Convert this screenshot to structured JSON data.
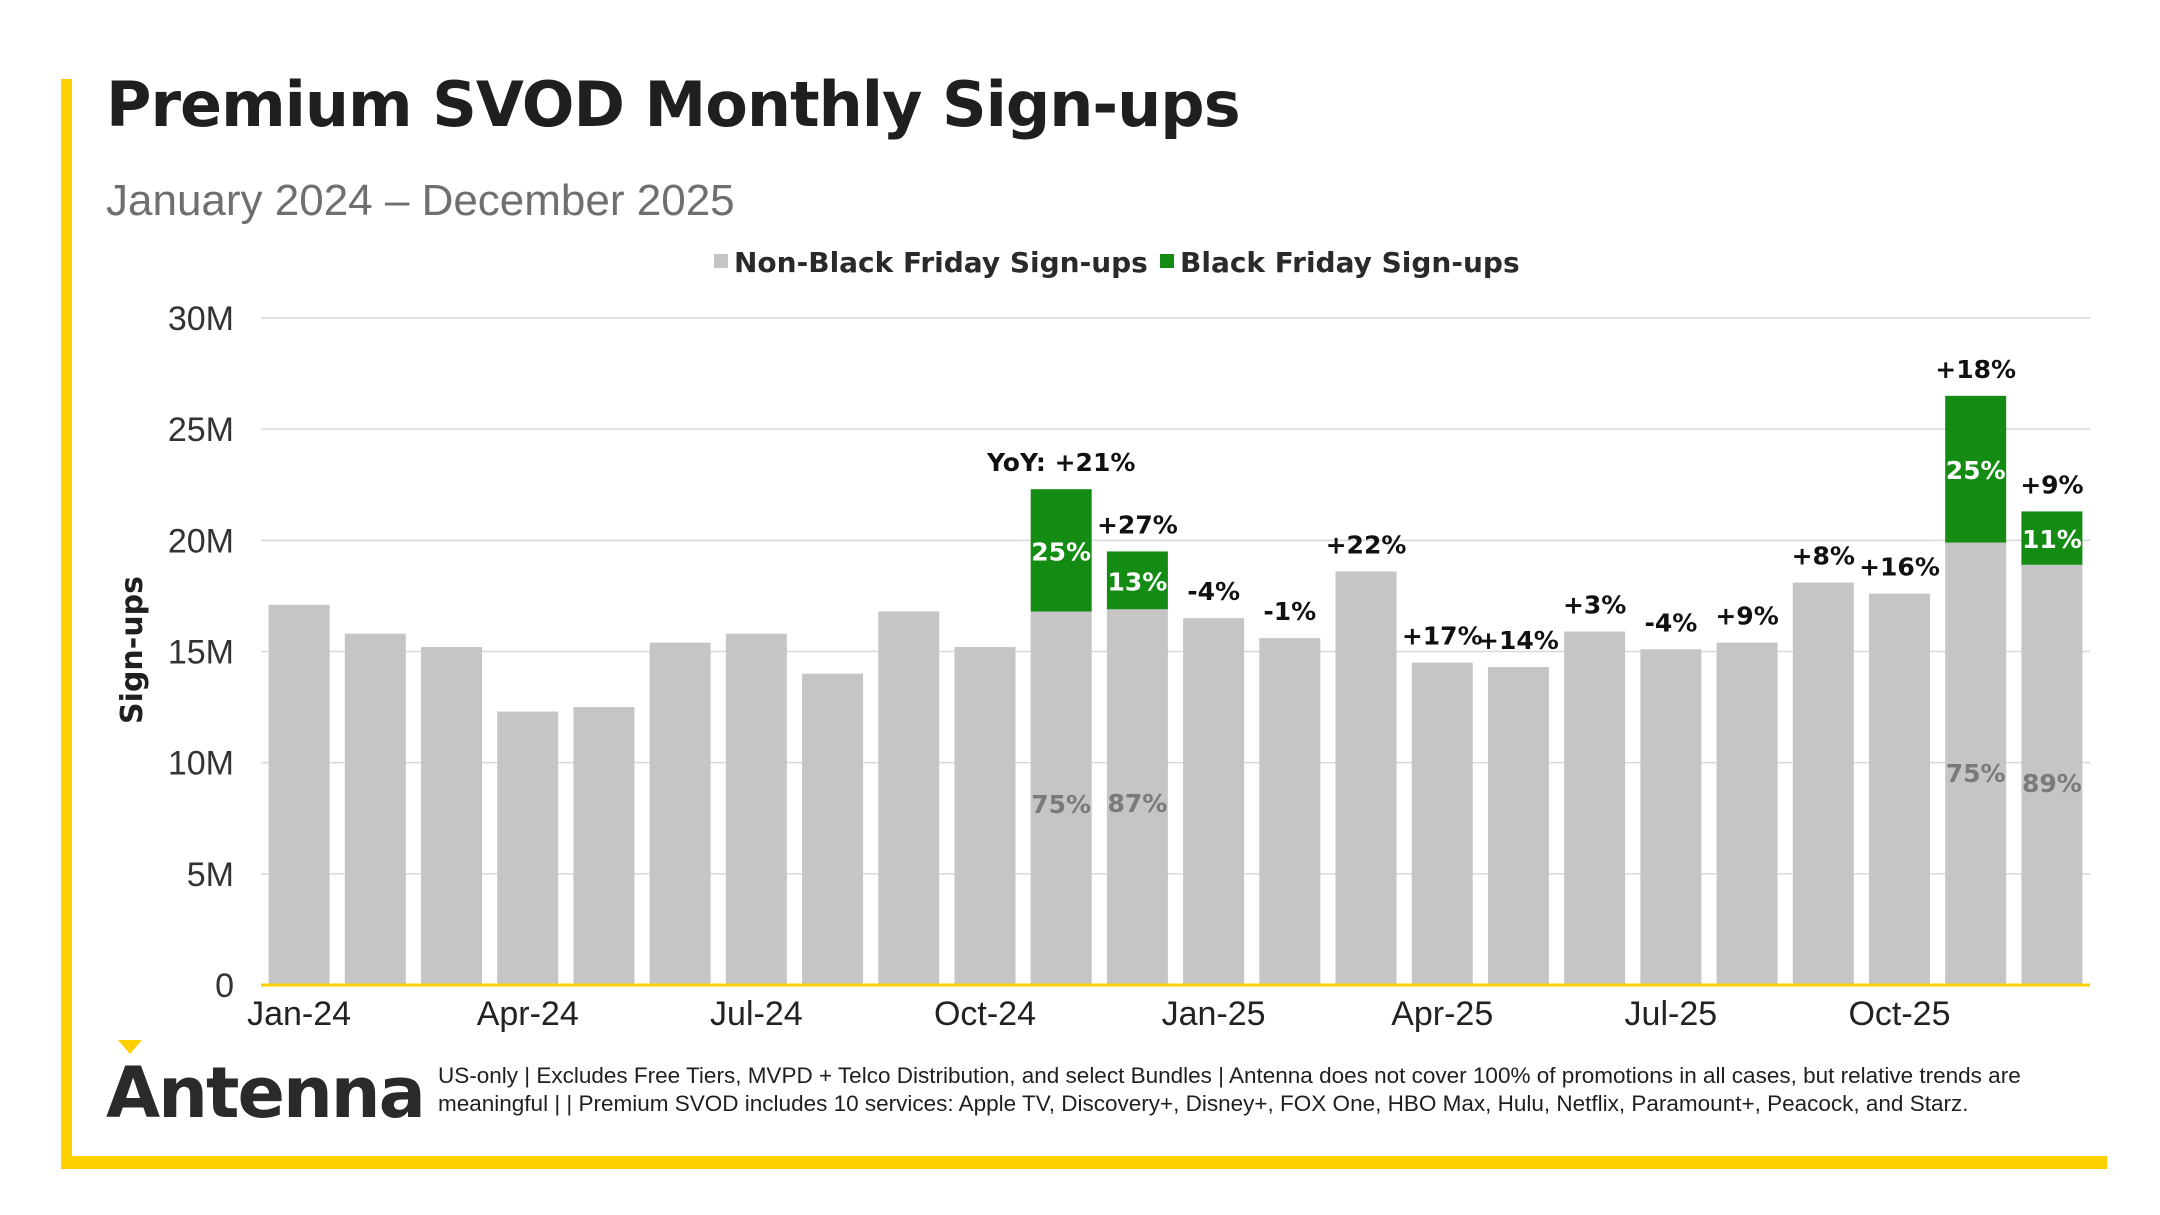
{
  "title": "Premium SVOD Monthly Sign-ups",
  "subtitle": "January 2024 – December 2025",
  "logo": "Antenna",
  "footnote": "US-only | Excludes Free Tiers, MVPD + Telco Distribution, and select Bundles | Antenna does not cover 100% of promotions in all cases, but relative trends are meaningful | | Premium SVOD includes 10 services: Apple TV, Discovery+, Disney+, FOX One, HBO Max, Hulu, Netflix, Paramount+, Peacock, and Starz.",
  "colors": {
    "non_bf": "#C6C5C6",
    "bf": "#148C14",
    "accent": "#FFD000",
    "grid": "#D9D9D9",
    "text": "#1f1f1f",
    "share_label": "#7a7a7a"
  },
  "chart_data": {
    "type": "bar",
    "stacked": true,
    "title": "Premium SVOD Monthly Sign-ups",
    "ylabel": "Sign-ups",
    "xlabel": "",
    "ylim": [
      0,
      30
    ],
    "y_unit": "M",
    "y_ticks": [
      "0",
      "5M",
      "10M",
      "15M",
      "20M",
      "25M",
      "30M"
    ],
    "x_tick_labels": [
      "Jan-24",
      "Apr-24",
      "Jul-24",
      "Oct-24",
      "Jan-25",
      "Apr-25",
      "Jul-25",
      "Oct-25"
    ],
    "categories": [
      "Jan-24",
      "Feb-24",
      "Mar-24",
      "Apr-24",
      "May-24",
      "Jun-24",
      "Jul-24",
      "Aug-24",
      "Sep-24",
      "Oct-24",
      "Nov-24",
      "Dec-24",
      "Jan-25",
      "Feb-25",
      "Mar-25",
      "Apr-25",
      "May-25",
      "Jun-25",
      "Jul-25",
      "Aug-25",
      "Sep-25",
      "Oct-25",
      "Nov-25",
      "Dec-25"
    ],
    "series": [
      {
        "name": "Non-Black Friday Sign-ups",
        "values": [
          17.1,
          15.8,
          15.2,
          12.3,
          12.5,
          15.4,
          15.8,
          14.0,
          16.8,
          15.2,
          16.8,
          16.9,
          16.5,
          15.6,
          18.6,
          14.5,
          14.3,
          15.9,
          15.1,
          15.4,
          18.1,
          17.6,
          19.9,
          18.9
        ]
      },
      {
        "name": "Black Friday Sign-ups",
        "values": [
          0,
          0,
          0,
          0,
          0,
          0,
          0,
          0,
          0,
          0,
          5.5,
          2.6,
          0,
          0,
          0,
          0,
          0,
          0,
          0,
          0,
          0,
          0,
          6.6,
          2.4
        ]
      }
    ],
    "yoy_labels": [
      "",
      "",
      "",
      "",
      "",
      "",
      "",
      "",
      "",
      "",
      "YoY: +21%",
      "+27%",
      "-4%",
      "-1%",
      "+22%",
      "+17%",
      "+14%",
      "+3%",
      "-4%",
      "+9%",
      "+8%",
      "+16%",
      "+18%",
      "+9%"
    ],
    "bf_share_labels": [
      "",
      "",
      "",
      "",
      "",
      "",
      "",
      "",
      "",
      "",
      "25%",
      "13%",
      "",
      "",
      "",
      "",
      "",
      "",
      "",
      "",
      "",
      "",
      "25%",
      "11%"
    ],
    "non_bf_share_labels": [
      "",
      "",
      "",
      "",
      "",
      "",
      "",
      "",
      "",
      "",
      "75%",
      "87%",
      "",
      "",
      "",
      "",
      "",
      "",
      "",
      "",
      "",
      "",
      "75%",
      "89%"
    ],
    "legend_position": "top-center"
  }
}
